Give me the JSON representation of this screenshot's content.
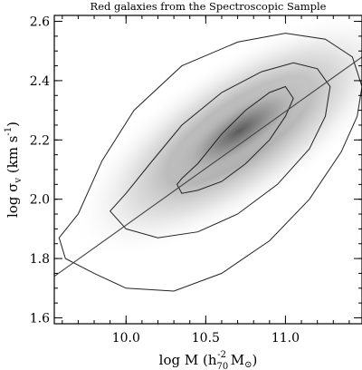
{
  "chart_data": {
    "type": "scatter",
    "title": "Red galaxies from the Spectroscopic Sample",
    "xlabel": {
      "main": "log M (h",
      "sub": "70",
      "sup": "-2",
      "tail": " M",
      "sun": "⊙",
      "close": ")"
    },
    "ylabel": {
      "main": "log σ",
      "sub": "v",
      "mid": " (km s",
      "sup": "-1",
      "close": ")"
    },
    "xlim": [
      9.55,
      11.48
    ],
    "ylim": [
      1.58,
      2.62
    ],
    "x_ticks": [
      {
        "value": 10.0,
        "label": "10.0"
      },
      {
        "value": 10.5,
        "label": "10.5"
      },
      {
        "value": 11.0,
        "label": "11.0"
      }
    ],
    "y_ticks": [
      {
        "value": 1.6,
        "label": "1.6"
      },
      {
        "value": 1.8,
        "label": "1.8"
      },
      {
        "value": 2.0,
        "label": "2.0"
      },
      {
        "value": 2.2,
        "label": "2.2"
      },
      {
        "value": 2.4,
        "label": "2.4"
      },
      {
        "value": 2.6,
        "label": "2.6"
      }
    ],
    "x_minor_step": 0.1,
    "y_minor_step": 0.05,
    "fit_line": {
      "x": [
        9.55,
        11.48
      ],
      "y": [
        1.74,
        2.48
      ]
    },
    "density_ridge": {
      "slope": 0.36,
      "x0": 10.7,
      "y0": 2.22
    },
    "contours": [
      {
        "level": "inner",
        "x": [
          10.35,
          10.45,
          10.6,
          10.75,
          10.9,
          11.0,
          11.05,
          11.0,
          10.9,
          10.75,
          10.6,
          10.45,
          10.35,
          10.32
        ],
        "y": [
          2.07,
          2.12,
          2.22,
          2.3,
          2.36,
          2.38,
          2.34,
          2.28,
          2.2,
          2.12,
          2.06,
          2.03,
          2.02,
          2.05
        ]
      },
      {
        "level": "middle",
        "x": [
          10.0,
          10.15,
          10.35,
          10.6,
          10.85,
          11.05,
          11.2,
          11.28,
          11.25,
          11.15,
          10.95,
          10.7,
          10.45,
          10.2,
          10.0,
          9.9
        ],
        "y": [
          2.02,
          2.12,
          2.25,
          2.36,
          2.43,
          2.46,
          2.44,
          2.38,
          2.28,
          2.17,
          2.05,
          1.95,
          1.89,
          1.87,
          1.9,
          1.96
        ]
      },
      {
        "level": "outer",
        "x": [
          9.7,
          9.85,
          10.05,
          10.35,
          10.7,
          11.0,
          11.25,
          11.42,
          11.48,
          11.45,
          11.35,
          11.15,
          10.9,
          10.6,
          10.3,
          10.0,
          9.8,
          9.62,
          9.58
        ],
        "y": [
          1.95,
          2.13,
          2.3,
          2.45,
          2.53,
          2.56,
          2.54,
          2.48,
          2.38,
          2.28,
          2.16,
          2.0,
          1.86,
          1.75,
          1.69,
          1.7,
          1.75,
          1.8,
          1.87
        ]
      }
    ],
    "grid": false,
    "legend": "none"
  }
}
